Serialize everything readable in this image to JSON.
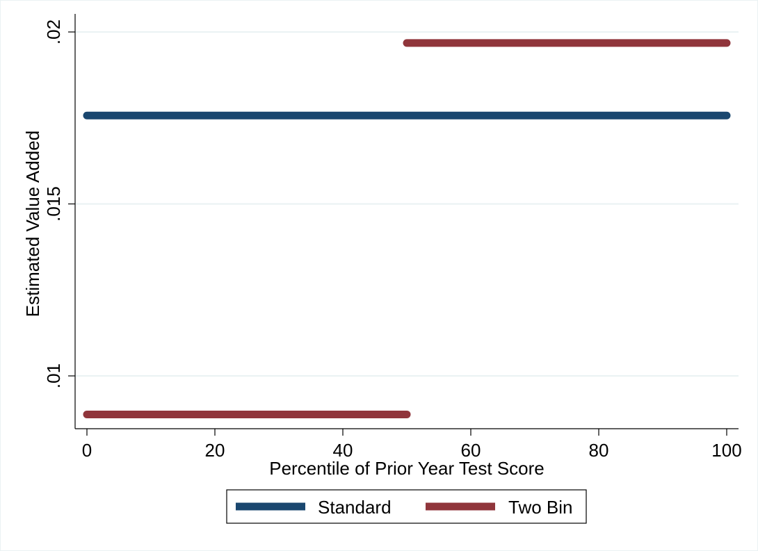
{
  "chart_data": {
    "type": "line",
    "xlabel": "Percentile of Prior Year Test Score",
    "ylabel": "Estimated Value Added",
    "xlim": [
      0,
      100
    ],
    "ylim": [
      0.02,
      0.01
    ],
    "x_ticks": [
      0,
      20,
      40,
      60,
      80,
      100
    ],
    "x_tick_labels": [
      "0",
      "20",
      "40",
      "60",
      "80",
      "100"
    ],
    "y_ticks": [
      0.01,
      0.015,
      0.02
    ],
    "y_tick_labels": [
      ".01",
      ".015",
      ".02"
    ],
    "grid": "horizontal",
    "legend_position": "bottom",
    "series": [
      {
        "name": "Standard",
        "color": "#1a476f",
        "segments": [
          {
            "x": [
              0,
              100
            ],
            "y": [
              0.01757,
              0.01757
            ]
          }
        ]
      },
      {
        "name": "Two Bin",
        "color": "#90353b",
        "segments": [
          {
            "x": [
              0,
              50
            ],
            "y": [
              0.00888,
              0.00888
            ]
          },
          {
            "x": [
              50,
              100
            ],
            "y": [
              0.01968,
              0.01968
            ]
          }
        ]
      }
    ]
  }
}
